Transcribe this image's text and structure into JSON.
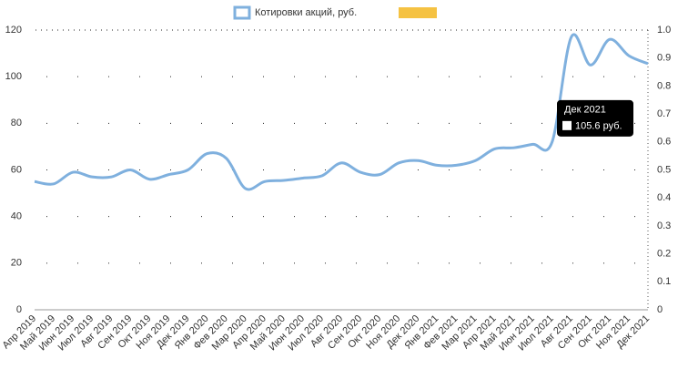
{
  "chart_data": {
    "type": "line",
    "series": [
      {
        "name": "Котировки акций, руб.",
        "color": "#7fb0de",
        "values": [
          55,
          54,
          59,
          57,
          57,
          60,
          56,
          58,
          60,
          67,
          65,
          52,
          55,
          55.5,
          56.5,
          57.5,
          63,
          59,
          58,
          63,
          64,
          62,
          62,
          64,
          69,
          69.5,
          71,
          72,
          117,
          105,
          116,
          109,
          105.6
        ]
      }
    ],
    "categories": [
      "Апр 2019",
      "Май 2019",
      "Июн 2019",
      "Июл 2019",
      "Авг 2019",
      "Сен 2019",
      "Окт 2019",
      "Ноя 2019",
      "Дек 2019",
      "Янв 2020",
      "Фев 2020",
      "Мар 2020",
      "Апр 2020",
      "Май 2020",
      "Июн 2020",
      "Июл 2020",
      "Авг 2020",
      "Сен 2020",
      "Окт 2020",
      "Ноя 2020",
      "Дек 2020",
      "Янв 2021",
      "Фев 2021",
      "Мар 2021",
      "Апр 2021",
      "Май 2021",
      "Июн 2021",
      "Июл 2021",
      "Авг 2021",
      "Сен 2021",
      "Окт 2021",
      "Ноя 2021",
      "Дек 2021"
    ],
    "ylim": [
      0,
      120
    ],
    "yticks": [
      0,
      20,
      40,
      60,
      80,
      100,
      120
    ],
    "y2lim": [
      0,
      1
    ],
    "y2ticks": [
      0,
      0.1,
      0.2,
      0.3,
      0.4,
      0.5,
      0.6,
      0.7,
      0.8,
      0.9,
      {
        "value": 1,
        "label": "1.0"
      }
    ],
    "grid": true,
    "tooltip_value": "105.6 руб."
  }
}
